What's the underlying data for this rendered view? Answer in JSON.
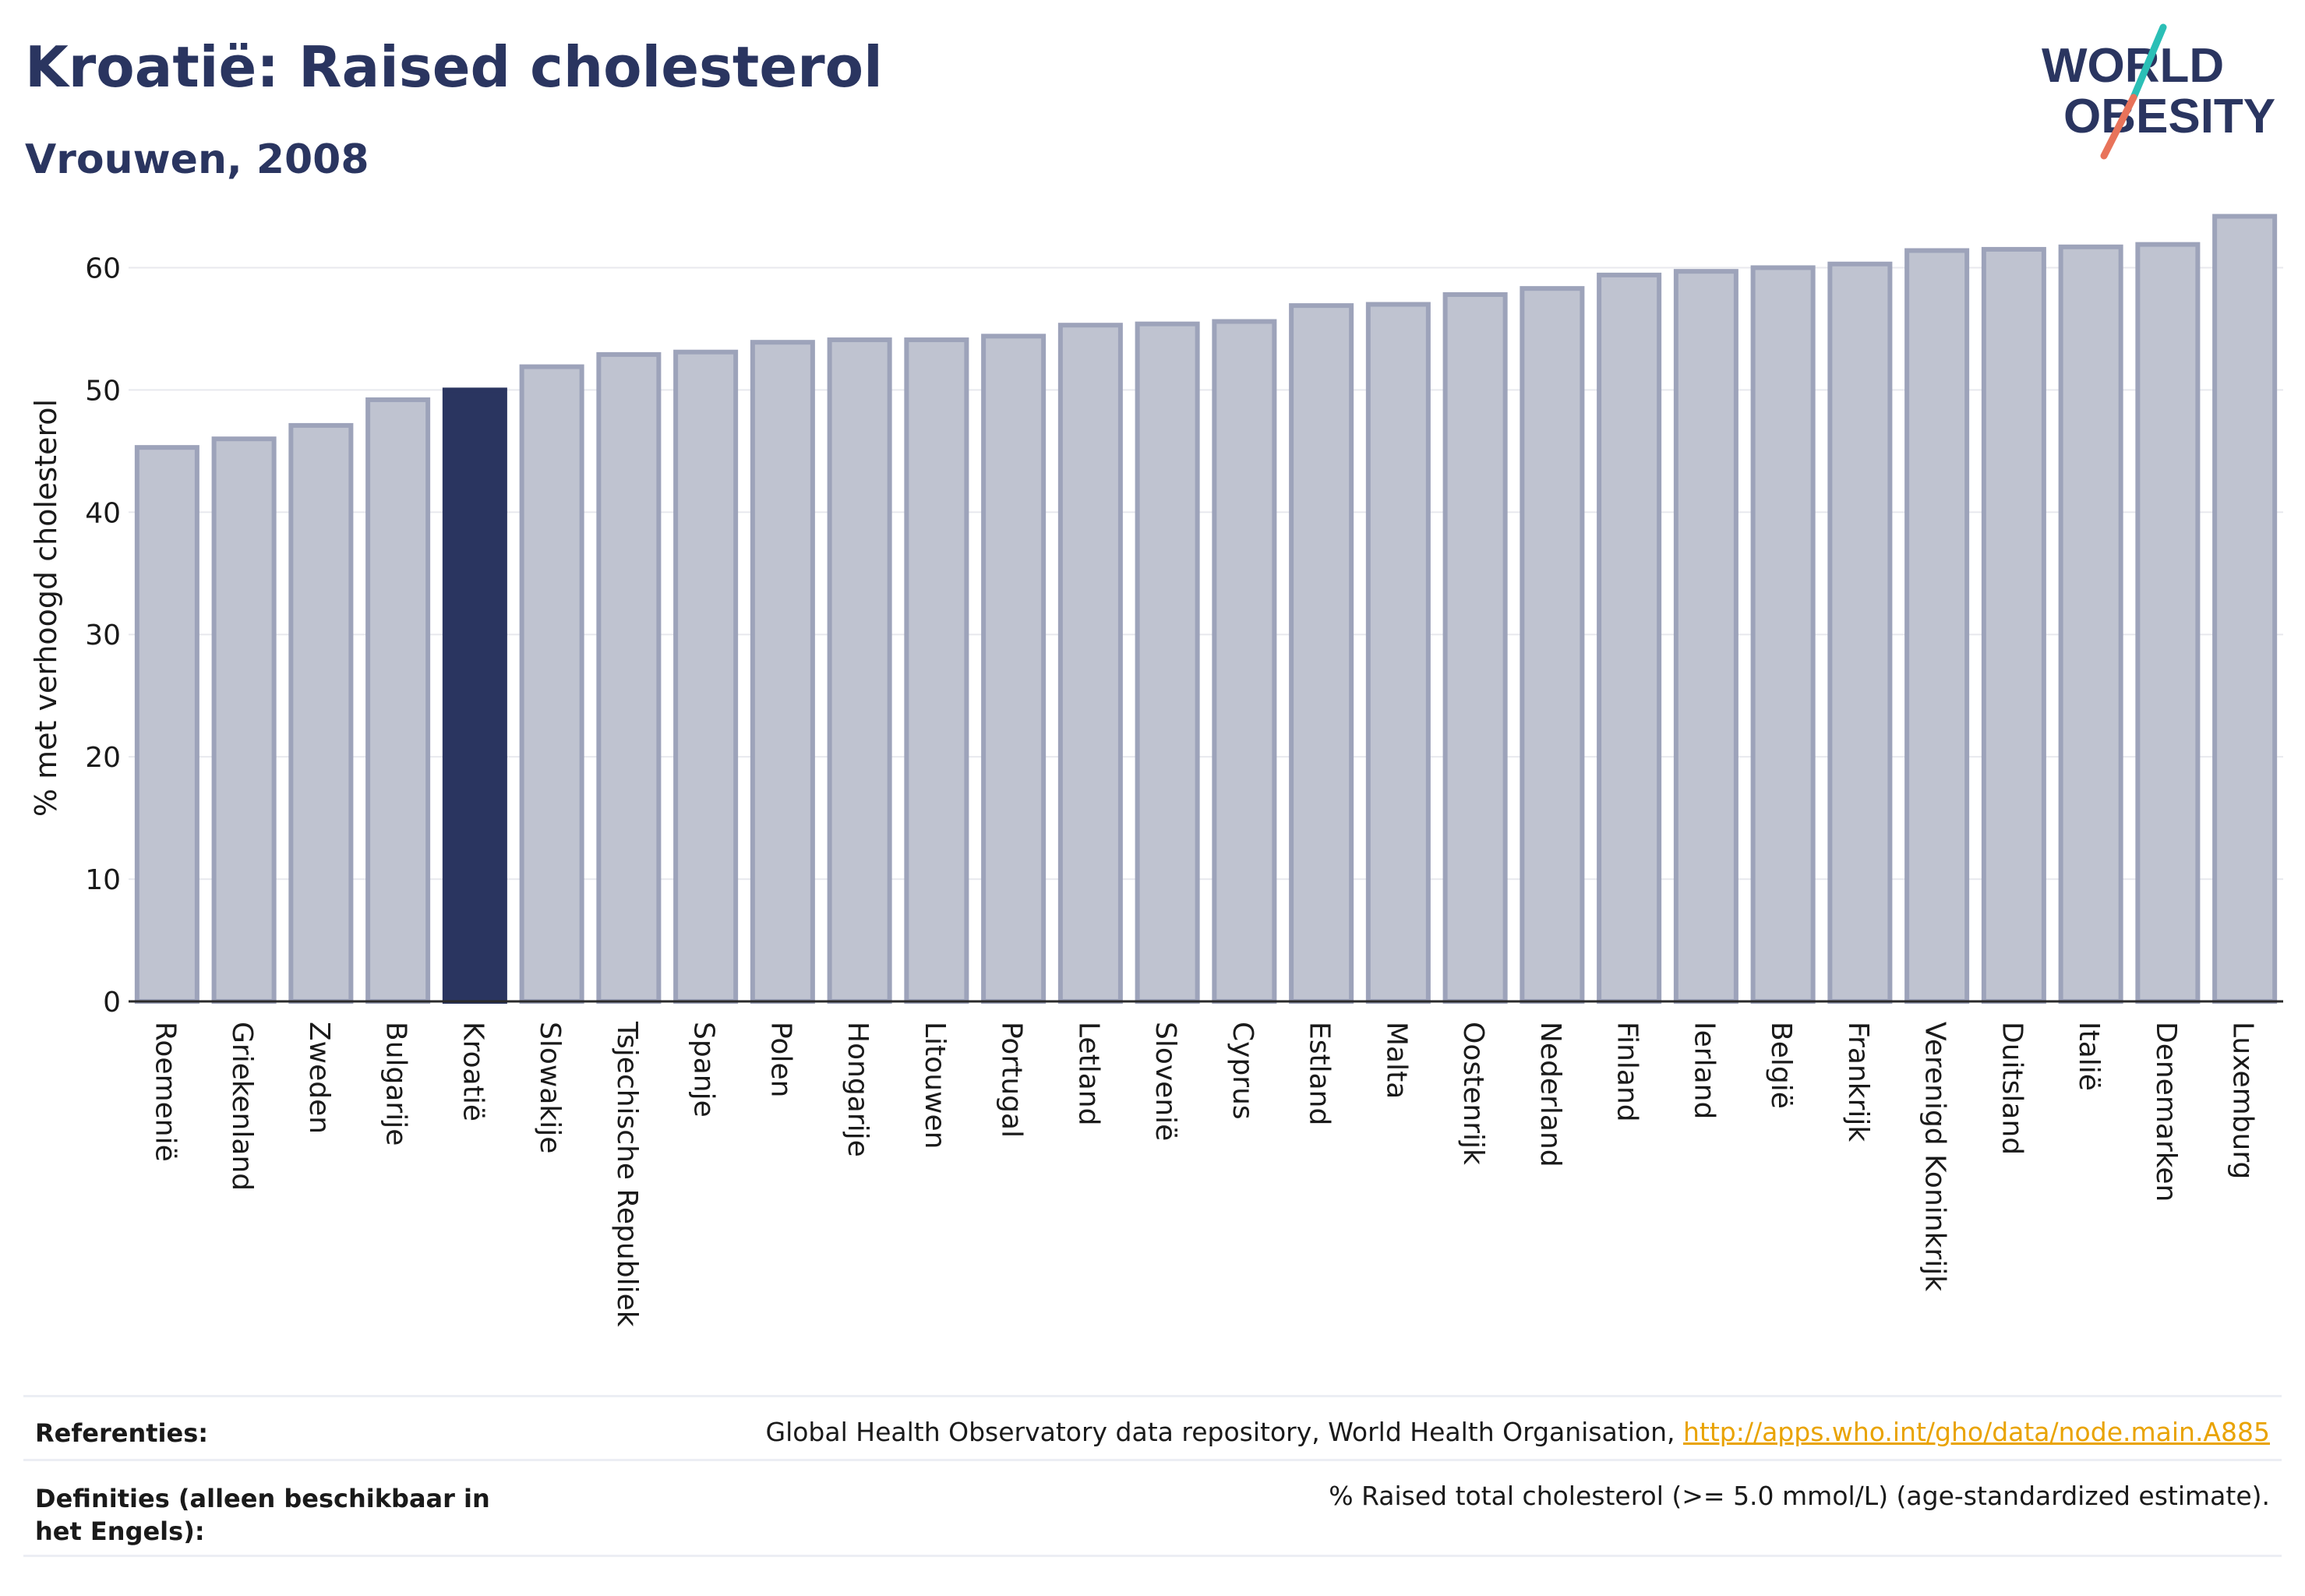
{
  "header": {
    "title": "Kroatië: Raised cholesterol",
    "subtitle": "Vrouwen, 2008"
  },
  "logo": {
    "line1": "WORLD",
    "line2": "OBESITY",
    "colors": {
      "text": "#2a3560",
      "slash_top": "#2bbfb6",
      "slash_bottom": "#e8735a"
    }
  },
  "colors": {
    "bar_fill": "#bfc3d0",
    "bar_stroke": "#9da3ba",
    "highlight_fill": "#2a3560",
    "grid": "#e8e9ee",
    "axis": "#2a2a2a"
  },
  "chart_data": {
    "type": "bar",
    "ylabel": "% met verhoogd cholesterol",
    "ylim": [
      0,
      65
    ],
    "yticks": [
      0,
      10,
      20,
      30,
      40,
      50,
      60
    ],
    "grid": true,
    "highlight": "Kroatië",
    "categories": [
      "Roemenië",
      "Griekenland",
      "Zweden",
      "Bulgarije",
      "Kroatië",
      "Slowakije",
      "Tsjechische Republiek",
      "Spanje",
      "Polen",
      "Hongarije",
      "Litouwen",
      "Portugal",
      "Letland",
      "Slovenië",
      "Cyprus",
      "Estland",
      "Malta",
      "Oostenrijk",
      "Nederland",
      "Finland",
      "Ierland",
      "België",
      "Frankrijk",
      "Verenigd Koninkrijk",
      "Duitsland",
      "Italië",
      "Denemarken",
      "Luxemburg"
    ],
    "values": [
      45.3,
      46.0,
      47.1,
      49.2,
      50.0,
      51.9,
      52.9,
      53.1,
      53.9,
      54.1,
      54.1,
      54.4,
      55.3,
      55.4,
      55.6,
      56.9,
      57.0,
      57.8,
      58.3,
      59.4,
      59.7,
      60.0,
      60.3,
      61.4,
      61.5,
      61.7,
      61.9,
      64.2
    ]
  },
  "footer": {
    "references_label": "Referenties:",
    "references_text": "Global Health Observatory data repository, World Health Organisation,",
    "references_link": "http://apps.who.int/gho/data/node.main.A885",
    "definitions_label": "Definities (alleen beschikbaar in het Engels):",
    "definitions_text": "% Raised total cholesterol (>= 5.0 mmol/L) (age-standardized estimate)."
  }
}
